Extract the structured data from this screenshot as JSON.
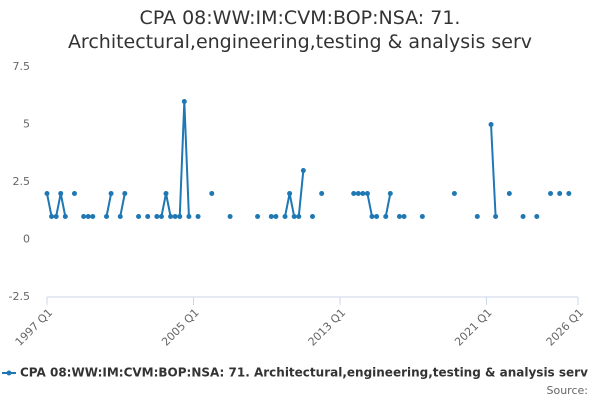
{
  "chart_data": {
    "type": "line",
    "title": "CPA 08:WW:IM:CVM:BOP:NSA: 71. Architectural,engineering,testing & analysis serv",
    "source": "Source:",
    "categories": [
      "1997 Q1",
      null,
      null,
      null,
      null,
      null,
      null,
      null,
      null,
      null,
      null,
      null,
      null,
      null,
      null,
      null,
      null,
      null,
      null,
      null,
      null,
      null,
      null,
      null,
      null,
      null,
      null,
      null,
      null,
      null,
      null,
      null,
      "2005 Q1",
      null,
      null,
      null,
      null,
      null,
      null,
      null,
      null,
      null,
      null,
      null,
      null,
      null,
      null,
      null,
      null,
      null,
      null,
      null,
      null,
      null,
      null,
      null,
      null,
      null,
      null,
      null,
      null,
      null,
      null,
      null,
      "2013 Q1",
      null,
      null,
      null,
      null,
      null,
      null,
      null,
      null,
      null,
      null,
      null,
      null,
      null,
      null,
      null,
      null,
      null,
      null,
      null,
      null,
      null,
      null,
      null,
      null,
      null,
      null,
      null,
      null,
      null,
      null,
      null,
      "2021 Q1",
      null,
      null,
      null,
      null,
      null,
      null,
      null,
      null,
      null,
      null,
      null,
      null,
      null,
      null,
      null,
      null,
      null,
      null,
      null,
      "2026 Q1"
    ],
    "series": [
      {
        "name": "CPA 08:WW:IM:CVM:BOP:NSA: 71. Architectural,engineering,testing & analysis serv",
        "color": "#1f78b4",
        "values": [
          2,
          1,
          1,
          2,
          1,
          null,
          2,
          null,
          1,
          1,
          1,
          null,
          null,
          1,
          2,
          null,
          1,
          2,
          null,
          null,
          1,
          null,
          1,
          null,
          1,
          1,
          2,
          1,
          1,
          1,
          6,
          1,
          null,
          1,
          null,
          null,
          2,
          null,
          null,
          null,
          1,
          null,
          null,
          null,
          null,
          null,
          1,
          null,
          null,
          1,
          1,
          null,
          1,
          2,
          1,
          1,
          3,
          null,
          1,
          null,
          2,
          null,
          null,
          null,
          null,
          null,
          null,
          2,
          2,
          2,
          2,
          1,
          1,
          null,
          1,
          2,
          null,
          1,
          1,
          null,
          null,
          null,
          1,
          null,
          null,
          null,
          null,
          null,
          null,
          2,
          null,
          null,
          null,
          null,
          1,
          null,
          null,
          5,
          1,
          null,
          null,
          2,
          null,
          null,
          1,
          null,
          null,
          1,
          null,
          null,
          2,
          null,
          2,
          null,
          2,
          null,
          null
        ]
      }
    ],
    "ylim": [
      -2.5,
      7.5
    ],
    "yticks": [
      -2.5,
      0,
      2.5,
      5,
      7.5
    ],
    "grid": false
  }
}
